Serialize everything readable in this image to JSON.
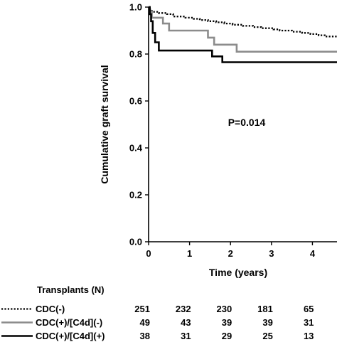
{
  "chart_data": {
    "type": "line",
    "title": "",
    "xlabel": "Time (years)",
    "ylabel": "Cumulative graft survival",
    "xlim": [
      0,
      4.6
    ],
    "ylim": [
      0,
      1.0
    ],
    "x_ticks": [
      "0",
      "1",
      "2",
      "3",
      "4"
    ],
    "y_ticks": [
      "0.0",
      "0.2",
      "0.4",
      "0.6",
      "0.8",
      "1.0"
    ],
    "grid": false,
    "annotation": "P=0.014",
    "series": [
      {
        "name": "CDC(-)",
        "style": "dotted",
        "color": "#000000",
        "steps": [
          [
            0,
            1.0
          ],
          [
            0.02,
            0.99
          ],
          [
            0.08,
            0.98
          ],
          [
            0.25,
            0.975
          ],
          [
            0.45,
            0.97
          ],
          [
            0.6,
            0.96
          ],
          [
            0.9,
            0.955
          ],
          [
            1.1,
            0.95
          ],
          [
            1.25,
            0.945
          ],
          [
            1.45,
            0.94
          ],
          [
            1.65,
            0.935
          ],
          [
            1.85,
            0.93
          ],
          [
            2.05,
            0.925
          ],
          [
            2.3,
            0.92
          ],
          [
            2.55,
            0.915
          ],
          [
            2.75,
            0.91
          ],
          [
            3.05,
            0.905
          ],
          [
            3.2,
            0.9
          ],
          [
            3.5,
            0.895
          ],
          [
            3.75,
            0.89
          ],
          [
            3.95,
            0.885
          ],
          [
            4.15,
            0.88
          ],
          [
            4.3,
            0.875
          ],
          [
            4.6,
            0.875
          ]
        ]
      },
      {
        "name": "CDC(+)/[C4d](-)",
        "style": "solid",
        "color": "#8c8c8c",
        "steps": [
          [
            0,
            1.0
          ],
          [
            0.03,
            0.98
          ],
          [
            0.08,
            0.955
          ],
          [
            0.35,
            0.93
          ],
          [
            0.5,
            0.9
          ],
          [
            1.45,
            0.87
          ],
          [
            1.6,
            0.84
          ],
          [
            2.15,
            0.81
          ],
          [
            4.6,
            0.81
          ]
        ]
      },
      {
        "name": "CDC(+)/[C4d](+)",
        "style": "solid",
        "color": "#000000",
        "steps": [
          [
            0,
            1.0
          ],
          [
            0.03,
            0.97
          ],
          [
            0.06,
            0.94
          ],
          [
            0.1,
            0.89
          ],
          [
            0.16,
            0.85
          ],
          [
            0.25,
            0.815
          ],
          [
            1.55,
            0.79
          ],
          [
            1.8,
            0.765
          ],
          [
            4.6,
            0.765
          ]
        ]
      }
    ]
  },
  "risk_table": {
    "title": "Transplants (N)",
    "rows": [
      {
        "name": "CDC(-)",
        "counts": [
          "251",
          "232",
          "230",
          "181",
          "65"
        ]
      },
      {
        "name": "CDC(+)/[C4d](-)",
        "counts": [
          "49",
          "43",
          "39",
          "39",
          "31"
        ]
      },
      {
        "name": "CDC(+)/[C4d](+)",
        "counts": [
          "38",
          "31",
          "29",
          "25",
          "13"
        ]
      }
    ]
  }
}
